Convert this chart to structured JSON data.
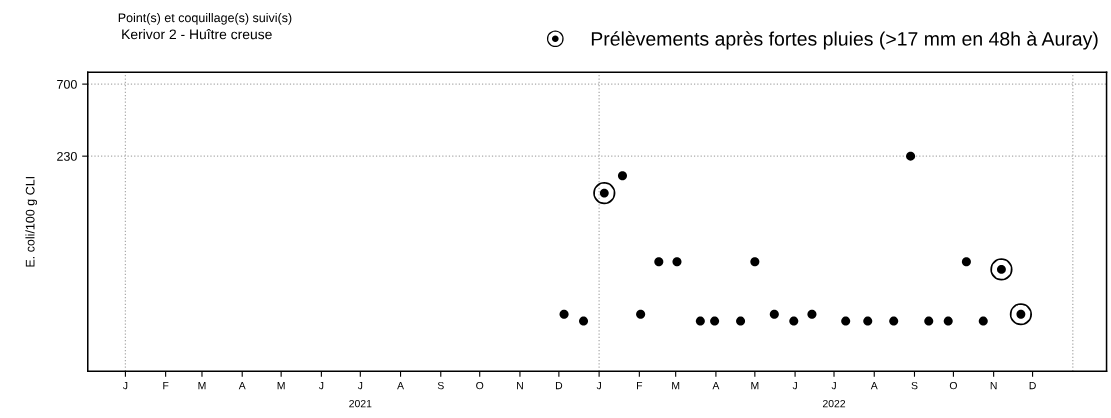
{
  "chart_data": {
    "type": "scatter",
    "title": "Point(s) et coquillage(s) suivi(s)",
    "subtitle": "Kerivor 2 - Huître creuse",
    "ylabel": "E. coli/100 g CLI",
    "log": "y",
    "ylim": [
      8.3,
      840
    ],
    "yticks": [
      230,
      700
    ],
    "xlim": [
      "2020-12-03",
      "2023-01-27"
    ],
    "xticks": [
      {
        "value": "2021-01-01",
        "label": "J"
      },
      {
        "value": "2021-02-01",
        "label": "F"
      },
      {
        "value": "2021-03-01",
        "label": "M"
      },
      {
        "value": "2021-04-01",
        "label": "A"
      },
      {
        "value": "2021-05-01",
        "label": "M"
      },
      {
        "value": "2021-06-01",
        "label": "J"
      },
      {
        "value": "2021-07-01",
        "label": "J\n2021"
      },
      {
        "value": "2021-08-01",
        "label": "A"
      },
      {
        "value": "2021-09-01",
        "label": "S"
      },
      {
        "value": "2021-10-01",
        "label": "O"
      },
      {
        "value": "2021-11-01",
        "label": "N"
      },
      {
        "value": "2021-12-01",
        "label": "D"
      },
      {
        "value": "2022-01-01",
        "label": "J"
      },
      {
        "value": "2022-02-01",
        "label": "F"
      },
      {
        "value": "2022-03-01",
        "label": "M"
      },
      {
        "value": "2022-04-01",
        "label": "A"
      },
      {
        "value": "2022-05-01",
        "label": "M"
      },
      {
        "value": "2022-06-01",
        "label": "J"
      },
      {
        "value": "2022-07-01",
        "label": "J\n2022"
      },
      {
        "value": "2022-08-01",
        "label": "A"
      },
      {
        "value": "2022-09-01",
        "label": "S"
      },
      {
        "value": "2022-10-01",
        "label": "O"
      },
      {
        "value": "2022-11-01",
        "label": "N"
      },
      {
        "value": "2022-12-01",
        "label": "D"
      }
    ],
    "grid": "y",
    "ref_lines": [
      {
        "axis": "x",
        "value": "2021-01-01",
        "color": "#aaaaaa",
        "line_style": "dotted"
      },
      {
        "axis": "x",
        "value": "2022-01-01",
        "color": "#aaaaaa",
        "line_style": "dotted"
      },
      {
        "axis": "x",
        "value": "2023-01-01",
        "color": "#aaaaaa",
        "line_style": "dotted"
      }
    ],
    "legend": "top right",
    "series": [
      {
        "color": "#000000",
        "marker": "circle",
        "x": [
          "2021-12-05",
          "2021-12-20",
          "2022-01-19",
          "2022-02-02",
          "2022-02-16",
          "2022-03-02",
          "2022-03-20",
          "2022-03-31",
          "2022-04-20",
          "2022-05-01",
          "2022-05-16",
          "2022-05-31",
          "2022-06-14",
          "2022-07-10",
          "2022-07-27",
          "2022-08-16",
          "2022-08-29",
          "2022-09-12",
          "2022-09-27",
          "2022-10-11",
          "2022-10-24"
        ],
        "values": [
          20,
          18,
          170,
          20,
          45,
          45,
          18,
          18,
          18,
          45,
          20,
          18,
          20,
          18,
          18,
          18,
          230,
          18,
          18,
          45,
          18
        ]
      },
      {
        "name": "Prélèvements après fortes pluies (>17 mm en 48h à Auray)",
        "color": "#000000",
        "marker": "circle",
        "x": [
          "2022-01-05",
          "2022-11-07",
          "2022-11-22"
        ],
        "values": [
          130,
          40,
          20
        ]
      }
    ]
  }
}
